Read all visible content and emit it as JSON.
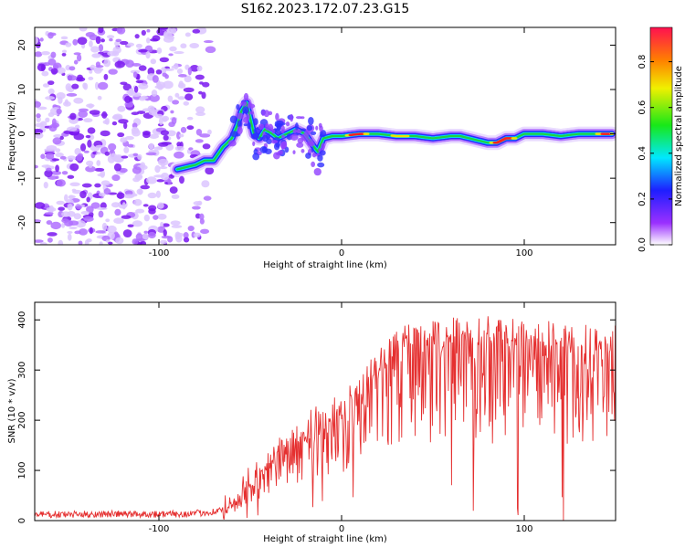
{
  "figure": {
    "title": "S162.2023.172.07.23.G15"
  },
  "chart_data": [
    {
      "type": "heatmap",
      "title": "S162.2023.172.07.23.G15",
      "xlabel": "Height of straight line (km)",
      "ylabel": "Frequency (Hz)",
      "xlim": [
        -168,
        150
      ],
      "ylim": [
        -25,
        24
      ],
      "xticks": [
        -100,
        0,
        100
      ],
      "yticks": [
        -20,
        -10,
        0,
        10,
        20
      ],
      "colorbar": {
        "label": "Normalized spectral amplitude",
        "range": [
          0,
          0.95
        ],
        "ticks": [
          0.0,
          0.2,
          0.4,
          0.6,
          0.8
        ]
      },
      "ridge": {
        "x": [
          -90,
          -80,
          -75,
          -70,
          -65,
          -60,
          -57,
          -55,
          -52,
          -48,
          -45,
          -42,
          -38,
          -35,
          -30,
          -25,
          -20,
          -15,
          -13,
          -10,
          -5,
          0,
          10,
          20,
          30,
          40,
          50,
          60,
          65,
          70,
          75,
          80,
          85,
          90,
          95,
          100,
          110,
          120,
          130,
          140,
          148
        ],
        "y": [
          -8,
          -7,
          -6,
          -6,
          -3,
          -1,
          2,
          5,
          7,
          0,
          -1,
          1,
          0,
          -1,
          0,
          1,
          0,
          -3,
          -4,
          -1,
          -0.5,
          -0.5,
          0,
          0,
          -0.5,
          -0.5,
          -1,
          -0.5,
          -0.5,
          -1,
          -1.5,
          -2,
          -2,
          -1,
          -1,
          0,
          0,
          -0.5,
          0,
          0,
          0
        ]
      },
      "grid": false
    },
    {
      "type": "line",
      "title": "",
      "xlabel": "Height of straight line (km)",
      "ylabel": "SNR (10 * v/v)",
      "xlim": [
        -168,
        150
      ],
      "ylim": [
        0,
        435
      ],
      "xticks": [
        -100,
        0,
        100
      ],
      "yticks": [
        0,
        100,
        200,
        300,
        400
      ],
      "series": [
        {
          "color": "#e53030",
          "x": [
            -168,
            -150,
            -130,
            -110,
            -90,
            -80,
            -70,
            -65,
            -60,
            -55,
            -50,
            -45,
            -40,
            -35,
            -30,
            -25,
            -20,
            -15,
            -10,
            -5,
            0,
            5,
            10,
            15,
            20,
            25,
            30,
            40,
            50,
            60,
            70,
            80,
            90,
            100,
            110,
            120,
            130,
            140,
            150
          ],
          "y": [
            12,
            12,
            13,
            13,
            13,
            14,
            18,
            22,
            40,
            60,
            85,
            100,
            120,
            140,
            150,
            175,
            180,
            200,
            195,
            215,
            240,
            250,
            260,
            290,
            310,
            340,
            365,
            375,
            375,
            375,
            380,
            380,
            375,
            370,
            370,
            365,
            360,
            360,
            360
          ]
        }
      ],
      "grid": false
    }
  ]
}
